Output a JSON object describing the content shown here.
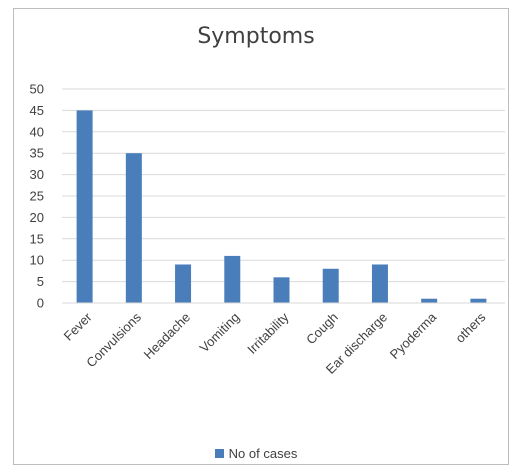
{
  "chart_data": {
    "type": "bar",
    "title": "Symptoms",
    "categories": [
      "Fever",
      "Convulsions",
      "Headache",
      "Vomiting",
      "Irritability",
      "Cough",
      "Ear discharge",
      "Pyoderma",
      "others"
    ],
    "series": [
      {
        "name": "No of cases",
        "values": [
          45,
          35,
          9,
          11,
          6,
          8,
          9,
          1,
          1
        ]
      }
    ],
    "ylim": [
      0,
      50
    ],
    "yticks": [
      0,
      5,
      10,
      15,
      20,
      25,
      30,
      35,
      40,
      45,
      50
    ],
    "grid": true,
    "legend_position": "bottom",
    "bar_color": "#4a7ebb",
    "grid_color": "#d9d9d9"
  }
}
